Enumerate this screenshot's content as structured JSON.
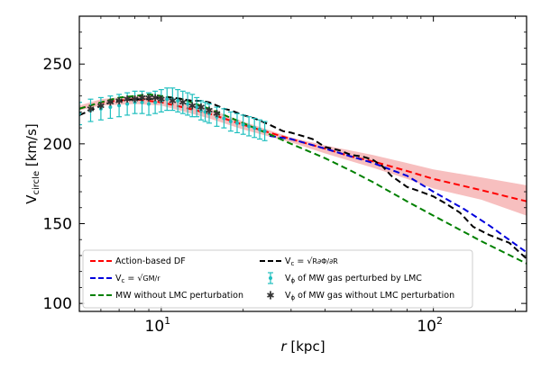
{
  "chart_data": {
    "type": "line",
    "xscale": "log",
    "xlim": [
      5,
      220
    ],
    "ylim": [
      95,
      280
    ],
    "xlabel_symbol": "r",
    "xlabel_unit": "[kpc]",
    "ylabel_main": "V",
    "ylabel_sub": "circle",
    "ylabel_unit": "[km/s]",
    "y_ticks": [
      100,
      150,
      200,
      250
    ],
    "x_ticks": [
      {
        "value": 10,
        "base": "10",
        "exp": "1"
      },
      {
        "value": 100,
        "base": "10",
        "exp": "2"
      }
    ],
    "band": {
      "name": "Action-based DF uncertainty",
      "color": "#f08080",
      "x": [
        5,
        6,
        8,
        10,
        15,
        20,
        30,
        40,
        60,
        80,
        100,
        150,
        220
      ],
      "upper": [
        224,
        228,
        230,
        229,
        222,
        214,
        204,
        199,
        193,
        188,
        184,
        179,
        174
      ],
      "lower": [
        221,
        224,
        225,
        224,
        216,
        209,
        201,
        194,
        185,
        178,
        172,
        165,
        155
      ]
    },
    "series": [
      {
        "name": "Action-based DF",
        "color": "#ff0000",
        "x": [
          5,
          6,
          8,
          10,
          12,
          15,
          20,
          25,
          30,
          40,
          50,
          60,
          80,
          100,
          150,
          220
        ],
        "y": [
          222,
          226,
          228,
          226,
          223,
          219,
          212,
          207,
          203,
          197,
          192,
          189,
          183,
          178,
          171,
          164
        ]
      },
      {
        "name": "V_c = sqrt(GM/r)",
        "color": "#0000dd",
        "x": [
          25,
          30,
          40,
          50,
          60,
          80,
          100,
          130,
          160,
          220
        ],
        "y": [
          205,
          203,
          197,
          192,
          188,
          180,
          170,
          159,
          149,
          132
        ]
      },
      {
        "name": "MW without LMC perturbation",
        "color": "#008000",
        "x": [
          5,
          6,
          7,
          8,
          9,
          10,
          12,
          15,
          20,
          25,
          30,
          40,
          50,
          60,
          80,
          100,
          150,
          220
        ],
        "y": [
          222,
          226,
          229,
          230,
          231,
          230,
          228,
          222,
          213,
          206,
          200,
          191,
          183,
          176,
          164,
          155,
          139,
          125
        ]
      },
      {
        "name": "V_c = sqrt(R dPhi/dR)",
        "color": "#000000",
        "x": [
          5,
          5.5,
          6,
          6.5,
          7,
          8,
          9,
          10,
          11,
          12,
          13,
          14,
          15,
          16,
          17,
          18,
          20,
          22,
          25,
          28,
          30,
          33,
          36,
          40,
          45,
          50,
          55,
          60,
          65,
          70,
          80,
          90,
          100,
          110,
          125,
          140,
          160,
          190,
          220
        ],
        "y": [
          218,
          221,
          224,
          226,
          227,
          228,
          228,
          229,
          229,
          228,
          227,
          227,
          226,
          224,
          222,
          221,
          218,
          216,
          212,
          208,
          207,
          205,
          203,
          198,
          196,
          193,
          192,
          190,
          186,
          180,
          173,
          170,
          167,
          163,
          157,
          148,
          143,
          138,
          128
        ]
      }
    ],
    "scatter": [
      {
        "name": "V_phi of MW gas perturbed by LMC",
        "color": "#1fbfbf",
        "marker": "dot-errorbar",
        "x": [
          5.0,
          5.5,
          6.0,
          6.5,
          7.0,
          7.5,
          8.0,
          8.5,
          9.0,
          9.5,
          10,
          10.5,
          11,
          11.5,
          12,
          12.5,
          13,
          13.5,
          14,
          14.5,
          15,
          16,
          17,
          18,
          19,
          20,
          21,
          22,
          23,
          24
        ],
        "y": [
          219,
          221,
          222,
          223,
          224,
          225,
          226,
          226,
          225,
          226,
          227,
          228,
          228,
          227,
          226,
          225,
          224,
          223,
          221,
          220,
          219,
          217,
          216,
          214,
          213,
          212,
          211,
          210,
          209,
          208
        ],
        "err": [
          7,
          7,
          7,
          7,
          7,
          7,
          7,
          7,
          7,
          7,
          7,
          7,
          7,
          7,
          7,
          7,
          7,
          6,
          6,
          6,
          6,
          6,
          6,
          6,
          6,
          6,
          6,
          6,
          6,
          6
        ]
      },
      {
        "name": "V_phi of MW gas without LMC perturbation",
        "color": "#333333",
        "marker": "star",
        "x": [
          5.5,
          6.0,
          6.5,
          7.0,
          7.5,
          8.0,
          8.5,
          9.0,
          9.5,
          10,
          11,
          12,
          13,
          14,
          15,
          16
        ],
        "y": [
          222,
          224,
          226,
          227,
          228,
          228,
          229,
          229,
          229,
          228,
          227,
          226,
          224,
          223,
          221,
          219
        ],
        "err": [
          2,
          2,
          2,
          2,
          2,
          2,
          2,
          2,
          2,
          2,
          2,
          2,
          2,
          2,
          2,
          2
        ]
      }
    ],
    "legend": {
      "placement": "lower-left",
      "entries": [
        {
          "key": "action_df",
          "label": "Action-based DF",
          "color": "#ff0000",
          "style": "dashed"
        },
        {
          "key": "vc_dphi",
          "label_prefix": "V",
          "label_sub": "c",
          "label_mid": " = ",
          "label_expr": "R∂Φ/∂R",
          "color": "#000000",
          "style": "dashed"
        },
        {
          "key": "vc_gm",
          "label_prefix": "V",
          "label_sub": "c",
          "label_mid": " = ",
          "label_expr": "GM/r",
          "color": "#0000dd",
          "style": "dashed"
        },
        {
          "key": "gas_lmc",
          "label_prefix": "V",
          "label_sub": "ϕ",
          "label": " of MW gas perturbed by LMC",
          "color": "#1fbfbf",
          "style": "errorbar"
        },
        {
          "key": "mw_no_lmc",
          "label": "MW without LMC perturbation",
          "color": "#008000",
          "style": "dashed"
        },
        {
          "key": "gas_no_lmc",
          "label_prefix": "V",
          "label_sub": "ϕ",
          "label": " of MW gas without LMC perturbation",
          "color": "#333333",
          "style": "star"
        }
      ]
    }
  }
}
